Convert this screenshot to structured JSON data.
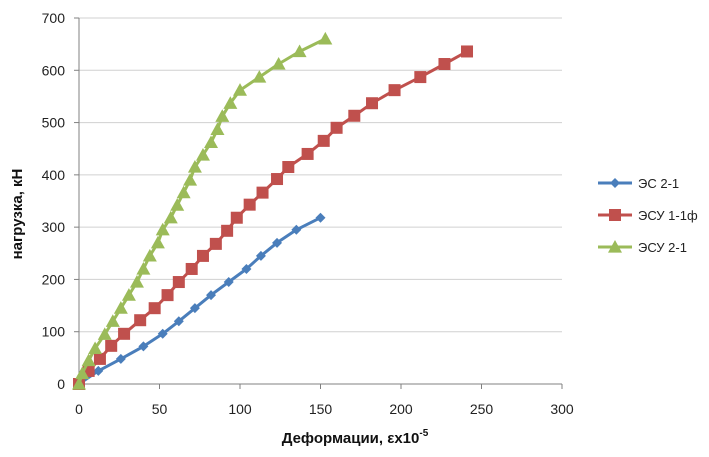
{
  "chart_data": {
    "type": "line",
    "xlabel": "Деформации, εx10",
    "xlabel_sup": "-5",
    "ylabel": "нагрузка, кН",
    "xlim": [
      0,
      300
    ],
    "ylim": [
      0,
      700
    ],
    "x_ticks": [
      "0",
      "50",
      "100",
      "150",
      "200",
      "250",
      "300"
    ],
    "y_ticks": [
      "0",
      "100",
      "200",
      "300",
      "400",
      "500",
      "600",
      "700"
    ],
    "grid": "horizontal",
    "legend_position": "right",
    "series": [
      {
        "name": "ЭС 2-1",
        "color": "#4a7ebb",
        "marker": "diamond",
        "points": [
          [
            0,
            0
          ],
          [
            12,
            25
          ],
          [
            26,
            48
          ],
          [
            40,
            72
          ],
          [
            52,
            96
          ],
          [
            62,
            120
          ],
          [
            72,
            145
          ],
          [
            82,
            170
          ],
          [
            93,
            195
          ],
          [
            104,
            220
          ],
          [
            113,
            245
          ],
          [
            123,
            270
          ],
          [
            135,
            295
          ],
          [
            150,
            318
          ]
        ]
      },
      {
        "name": "ЭСУ 1-1ф",
        "color": "#c0504d",
        "marker": "square",
        "points": [
          [
            0,
            0
          ],
          [
            6,
            25
          ],
          [
            13,
            48
          ],
          [
            20,
            73
          ],
          [
            28,
            96
          ],
          [
            38,
            122
          ],
          [
            47,
            145
          ],
          [
            55,
            170
          ],
          [
            62,
            195
          ],
          [
            70,
            220
          ],
          [
            77,
            245
          ],
          [
            85,
            268
          ],
          [
            92,
            293
          ],
          [
            98,
            318
          ],
          [
            106,
            343
          ],
          [
            114,
            366
          ],
          [
            123,
            392
          ],
          [
            130,
            415
          ],
          [
            142,
            440
          ],
          [
            152,
            465
          ],
          [
            160,
            490
          ],
          [
            171,
            513
          ],
          [
            182,
            537
          ],
          [
            196,
            562
          ],
          [
            212,
            587
          ],
          [
            227,
            612
          ],
          [
            241,
            636
          ]
        ]
      },
      {
        "name": "ЭСУ 2-1",
        "color": "#9bbb59",
        "marker": "triangle",
        "points": [
          [
            0,
            0
          ],
          [
            2,
            20
          ],
          [
            6,
            45
          ],
          [
            10,
            68
          ],
          [
            16,
            95
          ],
          [
            21,
            120
          ],
          [
            26,
            145
          ],
          [
            31,
            170
          ],
          [
            36,
            195
          ],
          [
            40,
            220
          ],
          [
            44,
            245
          ],
          [
            49,
            270
          ],
          [
            52,
            295
          ],
          [
            57,
            318
          ],
          [
            61,
            342
          ],
          [
            65,
            366
          ],
          [
            69,
            390
          ],
          [
            72,
            415
          ],
          [
            77,
            438
          ],
          [
            82,
            462
          ],
          [
            86,
            487
          ],
          [
            89,
            512
          ],
          [
            94,
            537
          ],
          [
            100,
            562
          ],
          [
            112,
            587
          ],
          [
            124,
            612
          ],
          [
            137,
            636
          ],
          [
            153,
            660
          ]
        ]
      }
    ]
  }
}
